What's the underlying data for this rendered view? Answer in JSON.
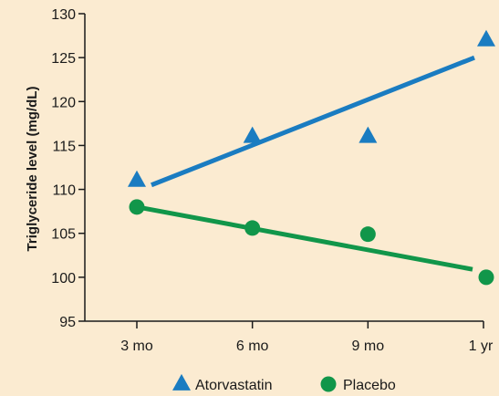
{
  "chart_data": {
    "type": "scatter",
    "title": "",
    "xlabel": "",
    "ylabel": "Triglyceride level (mg/dL)",
    "categories": [
      "3 mo",
      "6 mo",
      "9 mo",
      "1 yr"
    ],
    "yticks": [
      "95",
      "100",
      "105",
      "110",
      "115",
      "120",
      "125",
      "130"
    ],
    "ylim": [
      95,
      130
    ],
    "grid": false,
    "legend_position": "bottom",
    "series": [
      {
        "name": "Atorvastatin",
        "marker": "triangle",
        "color": "#1a7cc1",
        "values": [
          111,
          116,
          116,
          127
        ],
        "trendline": {
          "start": 110.5,
          "end": 125
        }
      },
      {
        "name": "Placebo",
        "marker": "circle",
        "color": "#11964a",
        "values": [
          108,
          105.6,
          104.9,
          100
        ],
        "trendline": {
          "start": 108,
          "end": 100.9
        }
      }
    ]
  }
}
